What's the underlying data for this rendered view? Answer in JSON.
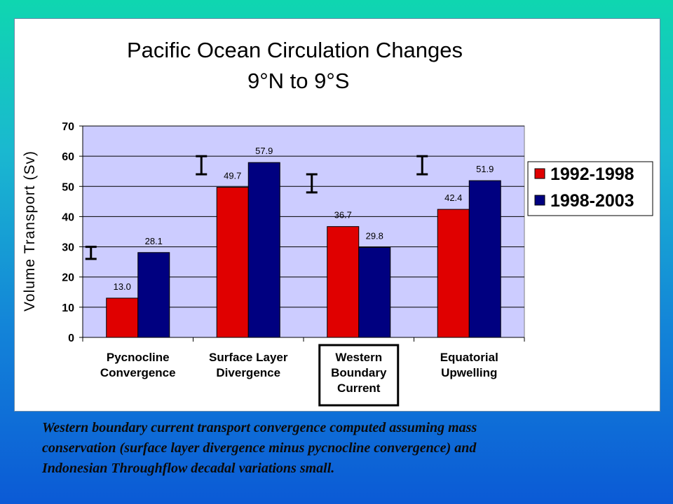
{
  "chart_data": {
    "type": "bar",
    "title": "Pacific Ocean Circulation Changes",
    "subtitle": "9°N to 9°S",
    "ylabel": "Volume Transport (Sv)",
    "xlabel": "",
    "ylim": [
      0,
      70
    ],
    "yticks": [
      0,
      10,
      20,
      30,
      40,
      50,
      60,
      70
    ],
    "grid": true,
    "legend_position": "right",
    "categories": [
      [
        "Pycnocline",
        "Convergence"
      ],
      [
        "Surface Layer",
        "Divergence"
      ],
      [
        "Western",
        "Boundary",
        "Current"
      ],
      [
        "Equatorial",
        "Upwelling"
      ]
    ],
    "highlighted_category": 2,
    "series": [
      {
        "name": "1992-1998",
        "color": "#e00000",
        "values": [
          13.0,
          49.7,
          36.7,
          42.4
        ],
        "labels": [
          "13.0",
          "49.7",
          "36.7",
          "42.4"
        ]
      },
      {
        "name": "1998-2003",
        "color": "#000080",
        "values": [
          28.1,
          57.9,
          29.8,
          51.9
        ],
        "labels": [
          "28.1",
          "57.9",
          "29.8",
          "51.9"
        ]
      }
    ],
    "error_bars": [
      {
        "category": 0,
        "low": 26,
        "high": 30
      },
      {
        "category": 1,
        "low": 54,
        "high": 60
      },
      {
        "category": 2,
        "low": 48,
        "high": 54
      },
      {
        "category": 3,
        "low": 54,
        "high": 60
      }
    ],
    "plot_background": "#ccccff"
  },
  "caption_lines": [
    "Western boundary current transport convergence computed assuming mass",
    "conservation (surface layer divergence minus pycnocline convergence) and",
    "Indonesian Throughflow decadal variations small."
  ]
}
